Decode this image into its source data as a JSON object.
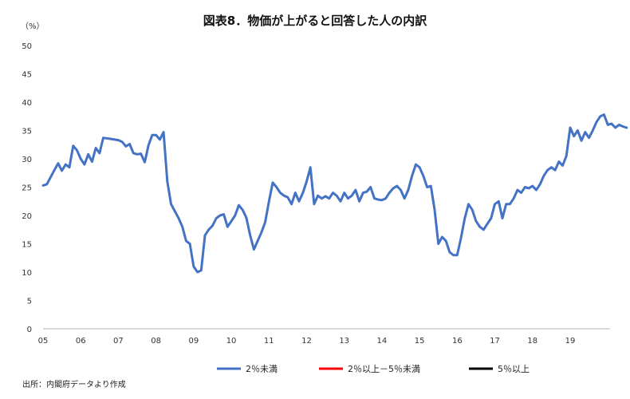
{
  "chart_data": {
    "type": "line",
    "title": "図表8．物価が上がると回答した人の内訳",
    "yunit": "（%）",
    "ylim": [
      0,
      50
    ],
    "yticks": [
      0,
      5,
      10,
      15,
      20,
      25,
      30,
      35,
      40,
      45,
      50
    ],
    "xlim": [
      2005,
      2020.06
    ],
    "xticks": [
      {
        "label": "05",
        "year": 2005
      },
      {
        "label": "06",
        "year": 2006
      },
      {
        "label": "07",
        "year": 2007
      },
      {
        "label": "08",
        "year": 2008
      },
      {
        "label": "09",
        "year": 2009
      },
      {
        "label": "10",
        "year": 2010
      },
      {
        "label": "11",
        "year": 2011
      },
      {
        "label": "12",
        "year": 2012
      },
      {
        "label": "13",
        "year": 2013
      },
      {
        "label": "14",
        "year": 2014
      },
      {
        "label": "15",
        "year": 2015
      },
      {
        "label": "16",
        "year": 2016
      },
      {
        "label": "17",
        "year": 2017
      },
      {
        "label": "18",
        "year": 2018
      },
      {
        "label": "19",
        "year": 2019
      }
    ],
    "source": "出所：内閣府データより作成",
    "series": [
      {
        "name": "2％未満",
        "color": "#4472c4",
        "points": [
          [
            2005.0,
            25.3
          ],
          [
            2005.1,
            25.5
          ],
          [
            2005.3,
            28.0
          ],
          [
            2005.4,
            29.2
          ],
          [
            2005.5,
            27.9
          ],
          [
            2005.6,
            29.0
          ],
          [
            2005.7,
            28.5
          ],
          [
            2005.8,
            32.3
          ],
          [
            2005.9,
            31.5
          ],
          [
            2006.0,
            30.0
          ],
          [
            2006.1,
            29.0
          ],
          [
            2006.2,
            30.8
          ],
          [
            2006.3,
            29.5
          ],
          [
            2006.4,
            31.9
          ],
          [
            2006.5,
            31.0
          ],
          [
            2006.6,
            33.7
          ],
          [
            2006.8,
            33.5
          ],
          [
            2007.0,
            33.3
          ],
          [
            2007.1,
            33.0
          ],
          [
            2007.2,
            32.2
          ],
          [
            2007.3,
            32.6
          ],
          [
            2007.4,
            31.0
          ],
          [
            2007.5,
            30.8
          ],
          [
            2007.6,
            30.9
          ],
          [
            2007.7,
            29.4
          ],
          [
            2007.8,
            32.4
          ],
          [
            2007.9,
            34.2
          ],
          [
            2008.0,
            34.2
          ],
          [
            2008.1,
            33.4
          ],
          [
            2008.2,
            34.7
          ],
          [
            2008.3,
            26.0
          ],
          [
            2008.4,
            22.0
          ],
          [
            2008.6,
            19.5
          ],
          [
            2008.7,
            18.0
          ],
          [
            2008.8,
            15.5
          ],
          [
            2008.9,
            15.0
          ],
          [
            2009.0,
            11.0
          ],
          [
            2009.1,
            10.0
          ],
          [
            2009.2,
            10.3
          ],
          [
            2009.3,
            16.5
          ],
          [
            2009.4,
            17.5
          ],
          [
            2009.5,
            18.2
          ],
          [
            2009.6,
            19.5
          ],
          [
            2009.7,
            20.0
          ],
          [
            2009.8,
            20.2
          ],
          [
            2009.9,
            18.0
          ],
          [
            2010.0,
            19.0
          ],
          [
            2010.1,
            20.0
          ],
          [
            2010.2,
            21.8
          ],
          [
            2010.3,
            21.0
          ],
          [
            2010.4,
            19.6
          ],
          [
            2010.5,
            16.5
          ],
          [
            2010.6,
            14.0
          ],
          [
            2010.7,
            15.5
          ],
          [
            2010.8,
            17.0
          ],
          [
            2010.9,
            18.8
          ],
          [
            2011.0,
            22.5
          ],
          [
            2011.1,
            25.8
          ],
          [
            2011.2,
            25.0
          ],
          [
            2011.3,
            24.0
          ],
          [
            2011.4,
            23.5
          ],
          [
            2011.5,
            23.2
          ],
          [
            2011.6,
            22.0
          ],
          [
            2011.7,
            24.0
          ],
          [
            2011.8,
            22.5
          ],
          [
            2011.9,
            24.0
          ],
          [
            2012.0,
            26.0
          ],
          [
            2012.1,
            28.5
          ],
          [
            2012.2,
            22.0
          ],
          [
            2012.3,
            23.5
          ],
          [
            2012.4,
            23.0
          ],
          [
            2012.5,
            23.4
          ],
          [
            2012.6,
            23.0
          ],
          [
            2012.7,
            24.0
          ],
          [
            2012.8,
            23.5
          ],
          [
            2012.9,
            22.5
          ],
          [
            2013.0,
            24.0
          ],
          [
            2013.1,
            23.0
          ],
          [
            2013.2,
            23.5
          ],
          [
            2013.3,
            24.5
          ],
          [
            2013.4,
            22.5
          ],
          [
            2013.5,
            24.0
          ],
          [
            2013.6,
            24.2
          ],
          [
            2013.7,
            25.0
          ],
          [
            2013.8,
            23.0
          ],
          [
            2013.9,
            22.8
          ],
          [
            2014.0,
            22.7
          ],
          [
            2014.1,
            23.0
          ],
          [
            2014.2,
            24.0
          ],
          [
            2014.3,
            24.8
          ],
          [
            2014.4,
            25.2
          ],
          [
            2014.5,
            24.5
          ],
          [
            2014.6,
            23.0
          ],
          [
            2014.7,
            24.5
          ],
          [
            2014.8,
            27.0
          ],
          [
            2014.9,
            29.0
          ],
          [
            2015.0,
            28.5
          ],
          [
            2015.1,
            27.0
          ],
          [
            2015.2,
            25.0
          ],
          [
            2015.3,
            25.2
          ],
          [
            2015.4,
            21.0
          ],
          [
            2015.5,
            15.0
          ],
          [
            2015.6,
            16.2
          ],
          [
            2015.7,
            15.5
          ],
          [
            2015.8,
            13.5
          ],
          [
            2015.9,
            13.0
          ],
          [
            2016.0,
            13.0
          ],
          [
            2016.1,
            16.0
          ],
          [
            2016.2,
            19.5
          ],
          [
            2016.3,
            22.0
          ],
          [
            2016.4,
            21.0
          ],
          [
            2016.5,
            19.0
          ],
          [
            2016.6,
            18.0
          ],
          [
            2016.7,
            17.5
          ],
          [
            2016.8,
            18.5
          ],
          [
            2016.9,
            19.5
          ],
          [
            2017.0,
            22.0
          ],
          [
            2017.1,
            22.5
          ],
          [
            2017.2,
            19.5
          ],
          [
            2017.3,
            22.0
          ],
          [
            2017.4,
            22.0
          ],
          [
            2017.5,
            23.0
          ],
          [
            2017.6,
            24.5
          ],
          [
            2017.7,
            24.0
          ],
          [
            2017.8,
            25.0
          ],
          [
            2017.9,
            24.8
          ],
          [
            2018.0,
            25.2
          ],
          [
            2018.1,
            24.5
          ],
          [
            2018.2,
            25.5
          ],
          [
            2018.3,
            27.0
          ],
          [
            2018.4,
            28.0
          ],
          [
            2018.5,
            28.5
          ],
          [
            2018.6,
            28.0
          ],
          [
            2018.7,
            29.5
          ],
          [
            2018.8,
            28.8
          ],
          [
            2018.9,
            30.5
          ],
          [
            2019.0,
            35.5
          ],
          [
            2019.1,
            34.0
          ],
          [
            2019.2,
            35.0
          ],
          [
            2019.3,
            33.2
          ],
          [
            2019.4,
            34.7
          ],
          [
            2019.5,
            33.7
          ],
          [
            2019.6,
            35.0
          ],
          [
            2019.7,
            36.5
          ],
          [
            2019.8,
            37.5
          ],
          [
            2019.9,
            37.8
          ],
          [
            2020.0,
            36.0
          ],
          [
            2020.1,
            36.2
          ],
          [
            2020.2,
            35.5
          ],
          [
            2020.3,
            36.0
          ],
          [
            2020.4,
            35.7
          ],
          [
            2020.5,
            35.5
          ]
        ]
      }
    ]
  },
  "legend": [
    {
      "label": "2％未満",
      "color": "#4472c4"
    },
    {
      "label": "2％以上－5％未満",
      "color": "#ff0000"
    },
    {
      "label": "5％以上",
      "color": "#000000"
    }
  ]
}
